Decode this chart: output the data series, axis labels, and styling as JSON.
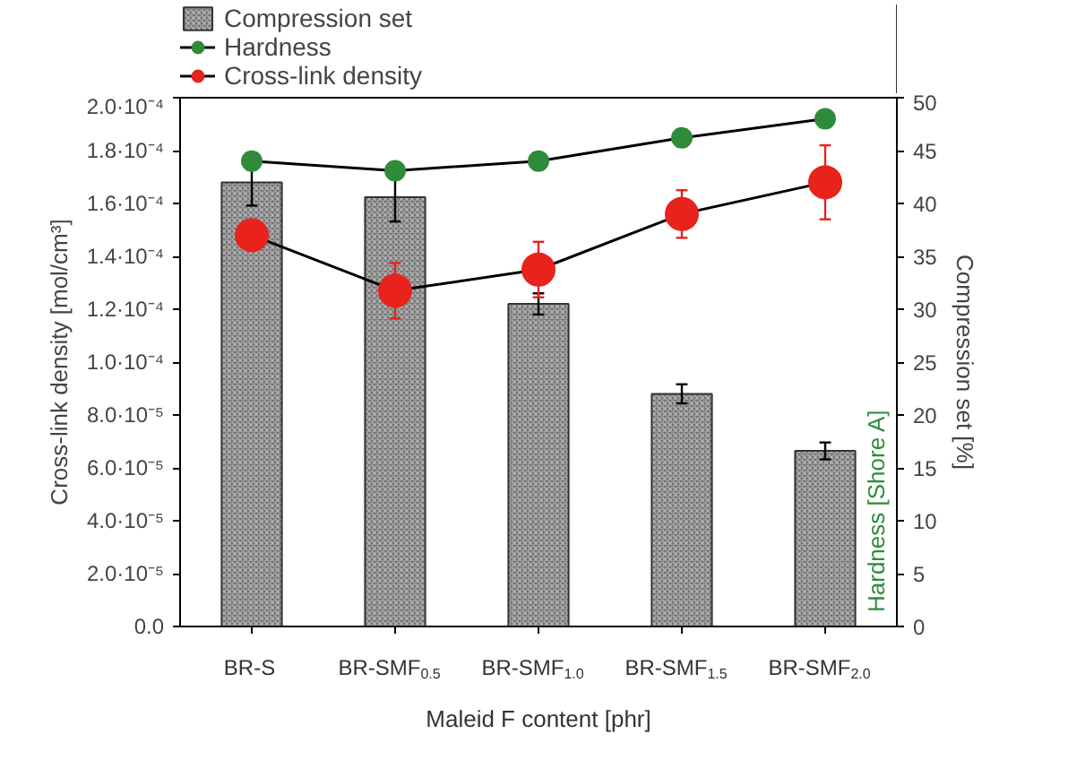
{
  "chart_data": {
    "type": "bar",
    "xlabel": "Maleid F content [phr]",
    "ylabel": "Cross-link density [mol/cm³]",
    "y2label": "Compression set [%]",
    "annotations": [
      "Hardness [Shore A]"
    ],
    "categories": [
      "BR-S",
      "BR-SMF$_{0.5}$",
      "BR-SMF$_{1.0}$",
      "BR-SMF$_{1.5}$",
      "BR-SMF$_{2.0}$"
    ],
    "grid": false,
    "ylim": [
      0,
      0.0002
    ],
    "yticks": [
      {
        "value": 0,
        "label": "0.0"
      },
      {
        "value": 2e-05,
        "label": "2.0·10⁻⁵"
      },
      {
        "value": 4e-05,
        "label": "4.0·10⁻⁵"
      },
      {
        "value": 6e-05,
        "label": "6.0·10⁻⁵"
      },
      {
        "value": 8e-05,
        "label": "8.0·10⁻⁵"
      },
      {
        "value": 0.0001,
        "label": "1.0·10⁻⁴"
      },
      {
        "value": 0.00012,
        "label": "1.2·10⁻⁴"
      },
      {
        "value": 0.00014,
        "label": "1.4·10⁻⁴"
      },
      {
        "value": 0.00016,
        "label": "1.6·10⁻⁴"
      },
      {
        "value": 0.00018,
        "label": "1.8·10⁻⁴"
      },
      {
        "value": 0.0002,
        "label": "2.0·10⁻⁴"
      }
    ],
    "y2lim": [
      0,
      50
    ],
    "y2ticks": [
      0,
      5,
      10,
      15,
      20,
      25,
      30,
      35,
      40,
      45,
      50
    ],
    "legend": "top left",
    "series": [
      {
        "name": "Compression set",
        "axis": "y2",
        "color": "#7a7a7a",
        "values": [
          42,
          40.6,
          30.5,
          22,
          16.6
        ],
        "errors": [
          2.2,
          2.3,
          1.0,
          0.9,
          0.8
        ]
      },
      {
        "name": "Hardness",
        "type": "line",
        "axis": "y2",
        "color": "#2e8b3a",
        "marker": "circle",
        "values": [
          44,
          43.1,
          44,
          46.2,
          48
        ],
        "errors": [
          0.8,
          0.8,
          0.8,
          0.8,
          0.8
        ]
      },
      {
        "name": "Cross-link density",
        "type": "line",
        "axis": "y",
        "color": "#e8221c",
        "marker": "circle",
        "values": [
          0.000148,
          0.000127,
          0.000135,
          0.000156,
          0.000168
        ],
        "errors": [
          5e-06,
          1.05e-05,
          1.05e-05,
          9e-06,
          1.4e-05
        ]
      }
    ]
  }
}
